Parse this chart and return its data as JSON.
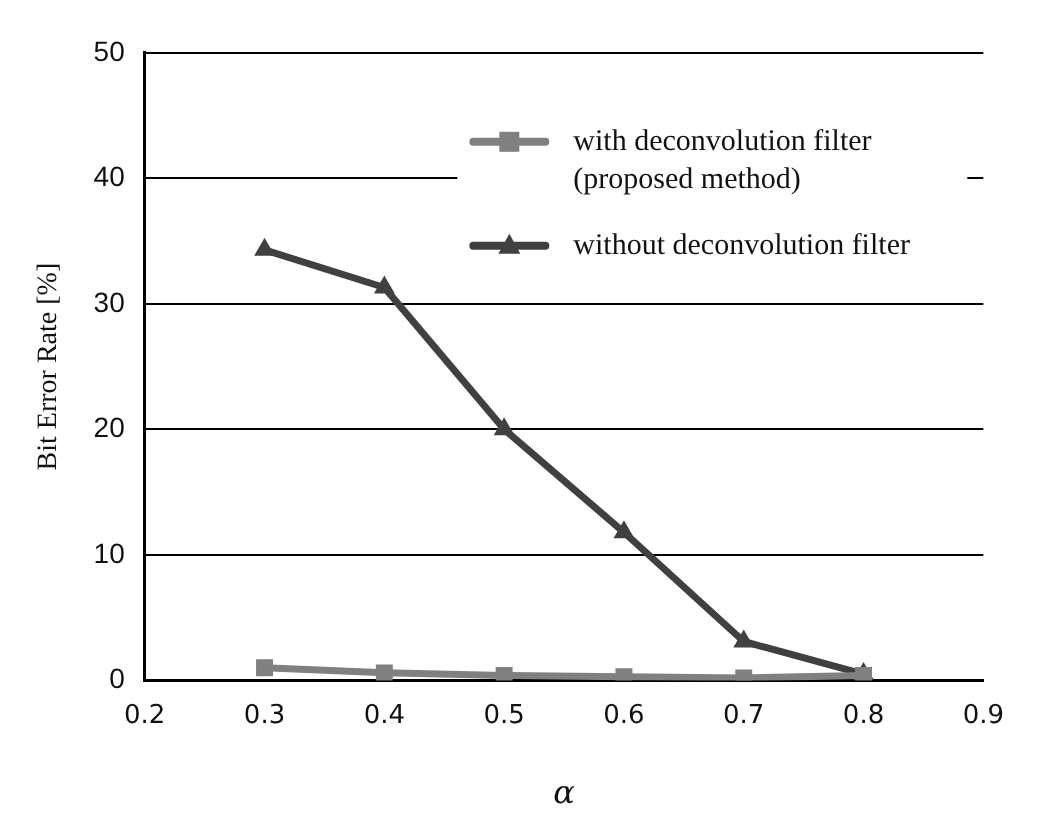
{
  "chart_data": {
    "type": "line",
    "xlabel": "α",
    "ylabel": "Bit Error Rate [%]",
    "x": [
      0.3,
      0.4,
      0.5,
      0.6,
      0.7,
      0.8
    ],
    "series": [
      {
        "name": "with deconvolution filter (proposed method)",
        "color": "#808080",
        "marker": "square",
        "values": [
          1.0,
          0.6,
          0.4,
          0.3,
          0.2,
          0.4
        ]
      },
      {
        "name": "without deconvolution filter",
        "color": "#404040",
        "marker": "triangle",
        "values": [
          34.3,
          31.3,
          20.0,
          11.8,
          3.1,
          0.5
        ]
      }
    ],
    "xlim": [
      0.2,
      0.9
    ],
    "xticks": [
      0.2,
      0.3,
      0.4,
      0.5,
      0.6,
      0.7,
      0.8,
      0.9
    ],
    "ylim": [
      0,
      50
    ],
    "yticks": [
      0,
      10,
      20,
      30,
      40,
      50
    ],
    "grid": "y",
    "legend": "top right",
    "line_style": "solid"
  }
}
